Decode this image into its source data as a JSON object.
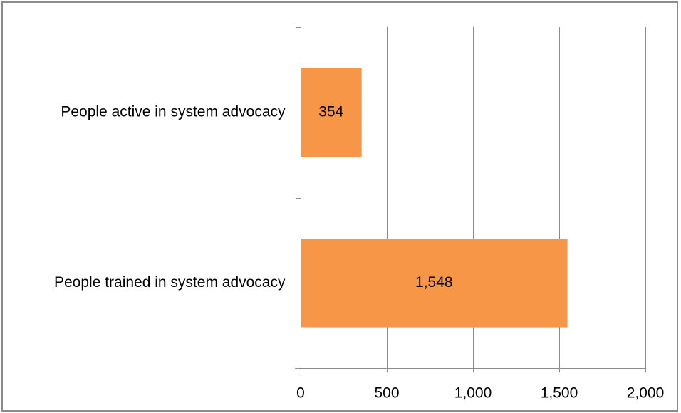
{
  "chart_data": {
    "type": "bar",
    "orientation": "horizontal",
    "categories": [
      "People active in system advocacy",
      "People trained in system advocacy"
    ],
    "values": [
      354,
      1548
    ],
    "data_labels": [
      "354",
      "1,548"
    ],
    "xlim": [
      0,
      2000
    ],
    "x_ticks": [
      0,
      500,
      1000,
      1500,
      2000
    ],
    "x_tick_labels": [
      "0",
      "500",
      "1,000",
      "1,500",
      "2,000"
    ],
    "grid": "vertical",
    "legend": "none",
    "bar_color": "#F79646"
  }
}
